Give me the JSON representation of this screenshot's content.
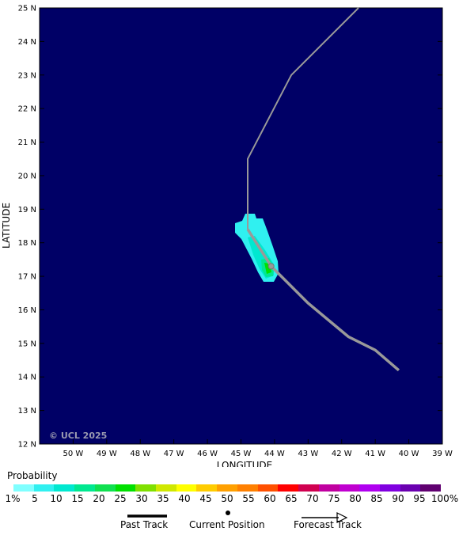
{
  "map": {
    "lat_labels": [
      "25 N",
      "24 N",
      "23 N",
      "22 N",
      "21 N",
      "20 N",
      "19 N",
      "18 N",
      "17 N",
      "16 N",
      "15 N",
      "14 N",
      "13 N",
      "12 N"
    ],
    "lon_labels": [
      "50 W",
      "49 W",
      "48 W",
      "47 W",
      "46 W",
      "45 W",
      "44 W",
      "43 W",
      "42 W",
      "41 W",
      "40 W",
      "39 W"
    ],
    "ylabel": "LATITUDE",
    "xlabel": "LONGITUDE",
    "copyright": "© UCL 2025",
    "ocean_color": "#000066",
    "track_color": "#999999",
    "past_track": [
      [
        40.3,
        14.2
      ],
      [
        41,
        14.8
      ],
      [
        41.8,
        15.2
      ],
      [
        43,
        16.2
      ],
      [
        44.1,
        17.3
      ],
      [
        44.8,
        18.4
      ]
    ],
    "forecast_track": [
      [
        44.8,
        18.4
      ],
      [
        44.8,
        20.5
      ],
      [
        43.5,
        23.0
      ],
      [
        41.5,
        25.0
      ]
    ],
    "current_position": [
      44.1,
      17.3
    ]
  },
  "legend": {
    "title": "Probability",
    "labels": [
      "1%",
      "5",
      "10",
      "15",
      "20",
      "25",
      "30",
      "35",
      "40",
      "45",
      "50",
      "55",
      "60",
      "65",
      "70",
      "75",
      "80",
      "85",
      "90",
      "95",
      "100%"
    ],
    "colors": [
      "#80ffff",
      "#30f0f0",
      "#00e8d0",
      "#00e890",
      "#10e050",
      "#00e000",
      "#80e000",
      "#d0e800",
      "#ffff00",
      "#ffcc00",
      "#ffa000",
      "#ff8000",
      "#ff5000",
      "#ff0000",
      "#d00050",
      "#c000a0",
      "#c000d0",
      "#b000f0",
      "#8000e0",
      "#6a00b0",
      "#600070"
    ],
    "key_past": "Past Track",
    "key_current": "Current Position",
    "key_forecast": "Forecast Track"
  }
}
